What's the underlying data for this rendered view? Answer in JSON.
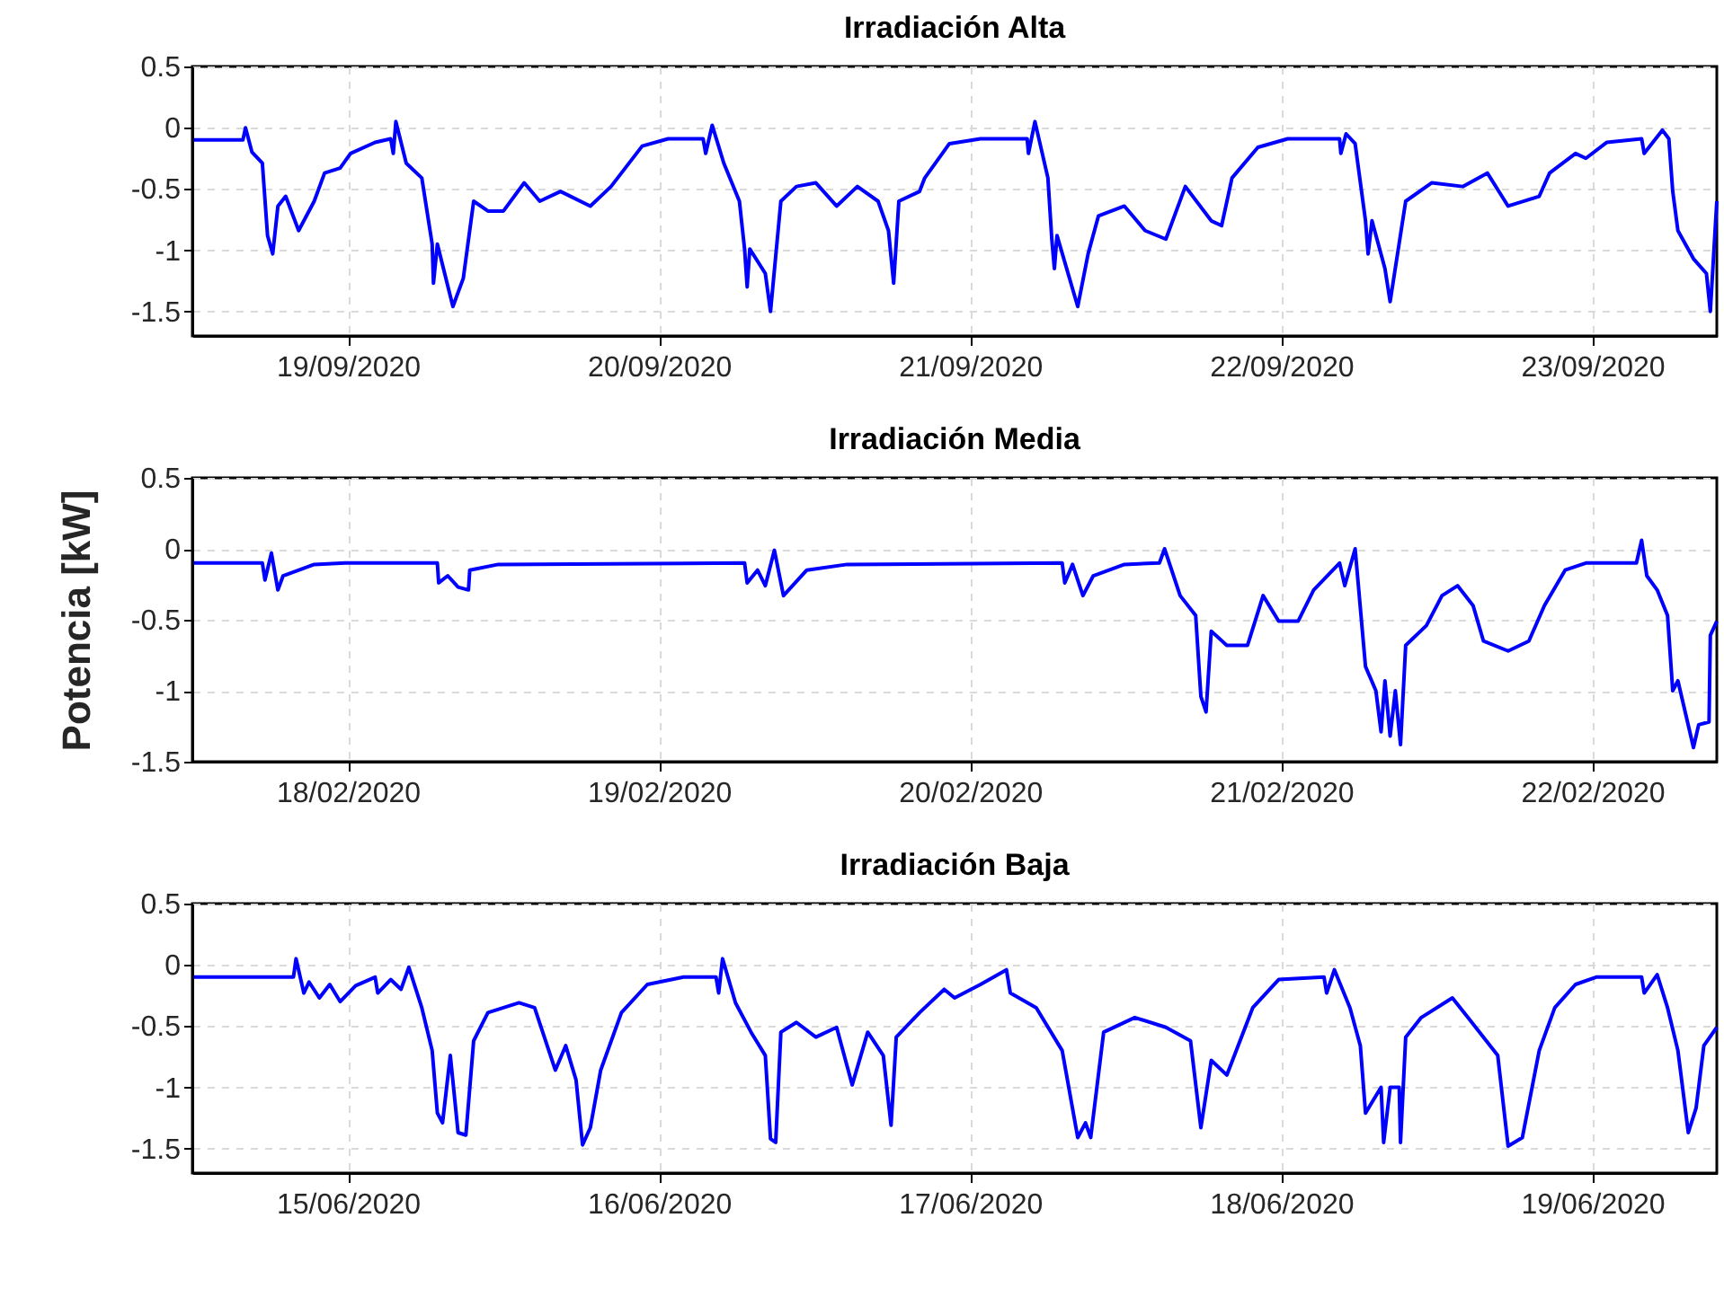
{
  "chart_data": [
    {
      "type": "line",
      "title": "Irradiación Alta",
      "grid": true,
      "x": [
        "2020-09-18T12:06",
        "2020-09-18T15:54",
        "2020-09-18T16:06",
        "2020-09-18T16:36",
        "2020-09-18T17:24",
        "2020-09-18T17:48",
        "2020-09-18T18:12",
        "2020-09-18T18:36",
        "2020-09-18T19:12",
        "2020-09-18T20:12",
        "2020-09-18T21:24",
        "2020-09-18T22:12",
        "2020-09-18T23:24",
        "2020-09-19T00:12",
        "2020-09-19T02:06",
        "2020-09-19T03:18",
        "2020-09-19T03:30",
        "2020-09-19T03:42",
        "2020-09-19T04:30",
        "2020-09-19T05:42",
        "2020-09-19T06:30",
        "2020-09-19T06:36",
        "2020-09-19T06:54",
        "2020-09-19T08:06",
        "2020-09-19T08:54",
        "2020-09-19T09:42",
        "2020-09-19T10:48",
        "2020-09-19T12:00",
        "2020-09-19T13:36",
        "2020-09-19T14:48",
        "2020-09-19T16:24",
        "2020-09-19T18:42",
        "2020-09-19T20:18",
        "2020-09-19T21:06",
        "2020-09-19T22:42",
        "2020-09-20T00:42",
        "2020-09-20T03:24",
        "2020-09-20T03:36",
        "2020-09-20T04:06",
        "2020-09-20T05:00",
        "2020-09-20T06:12",
        "2020-09-20T06:36",
        "2020-09-20T06:48",
        "2020-09-20T07:00",
        "2020-09-20T08:12",
        "2020-09-20T08:36",
        "2020-09-20T09:24",
        "2020-09-20T10:36",
        "2020-09-20T12:06",
        "2020-09-20T13:42",
        "2020-09-20T15:18",
        "2020-09-20T16:54",
        "2020-09-20T17:42",
        "2020-09-20T18:06",
        "2020-09-20T18:30",
        "2020-09-20T20:06",
        "2020-09-20T20:30",
        "2020-09-20T22:24",
        "2020-09-21T00:48",
        "2020-09-21T04:24",
        "2020-09-21T04:30",
        "2020-09-21T05:00",
        "2020-09-21T06:00",
        "2020-09-21T06:18",
        "2020-09-21T06:30",
        "2020-09-21T06:42",
        "2020-09-21T08:18",
        "2020-09-21T09:06",
        "2020-09-21T09:54",
        "2020-09-21T11:54",
        "2020-09-21T13:30",
        "2020-09-21T15:06",
        "2020-09-21T16:36",
        "2020-09-21T18:36",
        "2020-09-21T19:24",
        "2020-09-21T20:12",
        "2020-09-21T22:12",
        "2020-09-22T00:30",
        "2020-09-22T04:30",
        "2020-09-22T04:36",
        "2020-09-22T05:00",
        "2020-09-22T05:42",
        "2020-09-22T06:30",
        "2020-09-22T06:42",
        "2020-09-22T07:00",
        "2020-09-22T08:00",
        "2020-09-22T08:24",
        "2020-09-22T09:36",
        "2020-09-22T11:36",
        "2020-09-22T14:00",
        "2020-09-22T15:54",
        "2020-09-22T17:30",
        "2020-09-22T19:54",
        "2020-09-22T20:42",
        "2020-09-22T22:42",
        "2020-09-22T23:30",
        "2020-09-23T01:06",
        "2020-09-23T03:48",
        "2020-09-23T04:00",
        "2020-09-23T05:24",
        "2020-09-23T05:54",
        "2020-09-23T06:12",
        "2020-09-23T06:36",
        "2020-09-23T07:48",
        "2020-09-23T08:48",
        "2020-09-23T09:06",
        "2020-09-23T09:36"
      ],
      "series": [
        {
          "color": "#0000ff",
          "values": [
            -0.1,
            -0.1,
            0,
            -0.2,
            -0.29,
            -0.88,
            -1.03,
            -0.64,
            -0.56,
            -0.84,
            -0.6,
            -0.37,
            -0.33,
            -0.21,
            -0.12,
            -0.09,
            -0.21,
            0.05,
            -0.29,
            -0.41,
            -0.95,
            -1.27,
            -0.95,
            -1.46,
            -1.23,
            -0.6,
            -0.68,
            -0.68,
            -0.45,
            -0.6,
            -0.52,
            -0.64,
            -0.48,
            -0.37,
            -0.15,
            -0.09,
            -0.09,
            -0.21,
            0.02,
            -0.29,
            -0.6,
            -0.99,
            -1.3,
            -0.99,
            -1.19,
            -1.5,
            -0.6,
            -0.48,
            -0.45,
            -0.64,
            -0.48,
            -0.6,
            -0.84,
            -1.27,
            -0.6,
            -0.52,
            -0.41,
            -0.13,
            -0.09,
            -0.09,
            -0.21,
            0.05,
            -0.41,
            -0.91,
            -1.15,
            -0.88,
            -1.46,
            -1.03,
            -0.72,
            -0.64,
            -0.84,
            -0.91,
            -0.48,
            -0.76,
            -0.8,
            -0.41,
            -0.16,
            -0.09,
            -0.09,
            -0.21,
            -0.05,
            -0.13,
            -0.76,
            -1.03,
            -0.76,
            -1.15,
            -1.42,
            -0.6,
            -0.45,
            -0.48,
            -0.37,
            -0.64,
            -0.56,
            -0.37,
            -0.21,
            -0.25,
            -0.12,
            -0.09,
            -0.21,
            -0.02,
            -0.09,
            -0.52,
            -0.84,
            -1.07,
            -1.19,
            -1.5,
            -0.6
          ]
        }
      ],
      "xlim": [
        "2020-09-18T12:00",
        "2020-09-23T09:36"
      ],
      "xticks": [
        {
          "value": "2020-09-19",
          "label": "19/09/2020"
        },
        {
          "value": "2020-09-20",
          "label": "20/09/2020"
        },
        {
          "value": "2020-09-21",
          "label": "21/09/2020"
        },
        {
          "value": "2020-09-22",
          "label": "22/09/2020"
        },
        {
          "value": "2020-09-23",
          "label": "23/09/2020"
        }
      ],
      "ylim": [
        -1.7,
        0.5
      ],
      "yticks": [
        -1.5,
        -1,
        -0.5,
        0,
        0.5
      ]
    },
    {
      "type": "line",
      "title": "Irradiación Media",
      "ylabel": "Potencia [kW]",
      "grid": true,
      "x": [
        "2020-02-17T12:06",
        "2020-02-17T17:24",
        "2020-02-17T17:36",
        "2020-02-17T18:06",
        "2020-02-17T18:36",
        "2020-02-17T19:00",
        "2020-02-17T21:24",
        "2020-02-17T23:48",
        "2020-02-18T06:54",
        "2020-02-18T07:00",
        "2020-02-18T07:42",
        "2020-02-18T08:30",
        "2020-02-18T09:18",
        "2020-02-18T09:24",
        "2020-02-18T11:36",
        "2020-02-19T06:36",
        "2020-02-19T06:48",
        "2020-02-19T07:36",
        "2020-02-19T08:12",
        "2020-02-19T08:54",
        "2020-02-19T09:36",
        "2020-02-19T11:24",
        "2020-02-19T14:30",
        "2020-02-20T07:06",
        "2020-02-20T07:18",
        "2020-02-20T07:54",
        "2020-02-20T08:42",
        "2020-02-20T09:30",
        "2020-02-20T11:54",
        "2020-02-20T14:36",
        "2020-02-20T15:00",
        "2020-02-20T16:12",
        "2020-02-20T17:24",
        "2020-02-20T17:48",
        "2020-02-20T18:12",
        "2020-02-20T18:36",
        "2020-02-20T19:48",
        "2020-02-20T21:24",
        "2020-02-20T22:36",
        "2020-02-20T23:48",
        "2020-02-21T01:18",
        "2020-02-21T02:30",
        "2020-02-21T04:30",
        "2020-02-21T04:54",
        "2020-02-21T05:42",
        "2020-02-21T06:30",
        "2020-02-21T07:18",
        "2020-02-21T07:42",
        "2020-02-21T08:00",
        "2020-02-21T08:24",
        "2020-02-21T08:48",
        "2020-02-21T09:12",
        "2020-02-21T09:36",
        "2020-02-21T11:12",
        "2020-02-21T12:24",
        "2020-02-21T13:36",
        "2020-02-21T14:48",
        "2020-02-21T15:36",
        "2020-02-21T17:30",
        "2020-02-21T19:06",
        "2020-02-21T20:18",
        "2020-02-21T21:54",
        "2020-02-21T23:30",
        "2020-02-22T03:24",
        "2020-02-22T03:48",
        "2020-02-22T04:12",
        "2020-02-22T05:00",
        "2020-02-22T05:48",
        "2020-02-22T06:12",
        "2020-02-22T06:36",
        "2020-02-22T07:48",
        "2020-02-22T08:12",
        "2020-02-22T09:00",
        "2020-02-22T09:06",
        "2020-02-22T09:36"
      ],
      "series": [
        {
          "color": "#0000ff",
          "values": [
            -0.1,
            -0.1,
            -0.22,
            -0.03,
            -0.29,
            -0.19,
            -0.11,
            -0.1,
            -0.1,
            -0.24,
            -0.19,
            -0.27,
            -0.29,
            -0.15,
            -0.11,
            -0.1,
            -0.24,
            -0.15,
            -0.26,
            -0.01,
            -0.33,
            -0.15,
            -0.11,
            -0.1,
            -0.24,
            -0.11,
            -0.33,
            -0.19,
            -0.11,
            -0.1,
            0,
            -0.33,
            -0.47,
            -1.04,
            -1.15,
            -0.58,
            -0.68,
            -0.68,
            -0.33,
            -0.51,
            -0.51,
            -0.29,
            -0.1,
            -0.26,
            0,
            -0.83,
            -1.0,
            -1.29,
            -0.93,
            -1.32,
            -1.0,
            -1.38,
            -0.68,
            -0.54,
            -0.33,
            -0.26,
            -0.4,
            -0.65,
            -0.72,
            -0.65,
            -0.4,
            -0.15,
            -0.1,
            -0.1,
            0.06,
            -0.19,
            -0.29,
            -0.47,
            -1.0,
            -0.93,
            -1.4,
            -1.24,
            -1.22,
            -0.61,
            -0.51
          ]
        }
      ],
      "xlim": [
        "2020-02-17T12:00",
        "2020-02-22T09:36"
      ],
      "xticks": [
        {
          "value": "2020-02-18",
          "label": "18/02/2020"
        },
        {
          "value": "2020-02-19",
          "label": "19/02/2020"
        },
        {
          "value": "2020-02-20",
          "label": "20/02/2020"
        },
        {
          "value": "2020-02-21",
          "label": "21/02/2020"
        },
        {
          "value": "2020-02-22",
          "label": "22/02/2020"
        }
      ],
      "ylim": [
        -1.5,
        0.5
      ],
      "yticks": [
        -1.5,
        -1,
        -0.5,
        0,
        0.5
      ]
    },
    {
      "type": "line",
      "title": "Irradiación Baja",
      "grid": true,
      "x": [
        "2020-06-14T12:06",
        "2020-06-14T19:48",
        "2020-06-14T20:00",
        "2020-06-14T20:36",
        "2020-06-14T21:00",
        "2020-06-14T21:48",
        "2020-06-14T22:36",
        "2020-06-14T23:24",
        "2020-06-15T00:36",
        "2020-06-15T02:06",
        "2020-06-15T02:18",
        "2020-06-15T03:18",
        "2020-06-15T04:06",
        "2020-06-15T04:42",
        "2020-06-15T05:42",
        "2020-06-15T06:30",
        "2020-06-15T06:54",
        "2020-06-15T07:18",
        "2020-06-15T07:54",
        "2020-06-15T08:30",
        "2020-06-15T09:06",
        "2020-06-15T09:42",
        "2020-06-15T10:48",
        "2020-06-15T13:12",
        "2020-06-15T14:24",
        "2020-06-15T16:00",
        "2020-06-15T16:48",
        "2020-06-15T17:36",
        "2020-06-15T18:06",
        "2020-06-15T18:42",
        "2020-06-15T19:30",
        "2020-06-15T21:06",
        "2020-06-15T23:06",
        "2020-06-16T01:54",
        "2020-06-16T04:24",
        "2020-06-16T04:36",
        "2020-06-16T04:54",
        "2020-06-16T05:54",
        "2020-06-16T07:06",
        "2020-06-16T08:12",
        "2020-06-16T08:36",
        "2020-06-16T09:00",
        "2020-06-16T09:24",
        "2020-06-16T10:36",
        "2020-06-16T12:06",
        "2020-06-16T13:42",
        "2020-06-16T14:54",
        "2020-06-16T16:06",
        "2020-06-16T17:18",
        "2020-06-16T17:54",
        "2020-06-16T18:18",
        "2020-06-16T20:06",
        "2020-06-16T22:00",
        "2020-06-16T22:48",
        "2020-06-17T00:48",
        "2020-06-17T02:48",
        "2020-06-17T03:06",
        "2020-06-17T05:06",
        "2020-06-17T07:06",
        "2020-06-17T08:18",
        "2020-06-17T08:54",
        "2020-06-17T09:18",
        "2020-06-17T10:18",
        "2020-06-17T12:42",
        "2020-06-17T15:06",
        "2020-06-17T17:00",
        "2020-06-17T17:48",
        "2020-06-17T18:36",
        "2020-06-17T19:48",
        "2020-06-17T21:48",
        "2020-06-17T23:48",
        "2020-06-18T03:18",
        "2020-06-18T03:30",
        "2020-06-18T04:06",
        "2020-06-18T05:18",
        "2020-06-18T06:06",
        "2020-06-18T06:30",
        "2020-06-18T07:42",
        "2020-06-18T07:54",
        "2020-06-18T08:24",
        "2020-06-18T09:06",
        "2020-06-18T09:12",
        "2020-06-18T09:36",
        "2020-06-18T10:48",
        "2020-06-18T13:12",
        "2020-06-18T14:24",
        "2020-06-18T16:42",
        "2020-06-18T17:30",
        "2020-06-18T18:36",
        "2020-06-18T19:54",
        "2020-06-18T21:06",
        "2020-06-18T22:42",
        "2020-06-19T00:18",
        "2020-06-19T03:48",
        "2020-06-19T04:00",
        "2020-06-19T05:00",
        "2020-06-19T05:48",
        "2020-06-19T06:36",
        "2020-06-19T07:24",
        "2020-06-19T08:00",
        "2020-06-19T08:36",
        "2020-06-19T09:36"
      ],
      "series": [
        {
          "color": "#0000ff",
          "values": [
            -0.1,
            -0.1,
            0.05,
            -0.23,
            -0.14,
            -0.27,
            -0.16,
            -0.3,
            -0.17,
            -0.1,
            -0.23,
            -0.12,
            -0.2,
            -0.02,
            -0.35,
            -0.7,
            -1.21,
            -1.29,
            -0.74,
            -1.37,
            -1.39,
            -0.62,
            -0.39,
            -0.31,
            -0.35,
            -0.86,
            -0.66,
            -0.94,
            -1.47,
            -1.33,
            -0.86,
            -0.39,
            -0.16,
            -0.1,
            -0.1,
            -0.23,
            0.05,
            -0.31,
            -0.55,
            -0.74,
            -1.42,
            -1.45,
            -0.55,
            -0.47,
            -0.59,
            -0.51,
            -0.98,
            -0.55,
            -0.74,
            -1.31,
            -0.59,
            -0.39,
            -0.2,
            -0.27,
            -0.16,
            -0.04,
            -0.23,
            -0.35,
            -0.7,
            -1.41,
            -1.29,
            -1.41,
            -0.55,
            -0.43,
            -0.51,
            -0.62,
            -1.33,
            -0.78,
            -0.9,
            -0.35,
            -0.12,
            -0.1,
            -0.23,
            -0.04,
            -0.35,
            -0.66,
            -1.21,
            -1.0,
            -1.45,
            -1.0,
            -1.0,
            -1.45,
            -0.59,
            -0.43,
            -0.27,
            -0.43,
            -0.74,
            -1.48,
            -1.41,
            -0.7,
            -0.35,
            -0.16,
            -0.1,
            -0.1,
            -0.23,
            -0.08,
            -0.35,
            -0.7,
            -1.37,
            -1.17,
            -0.66,
            -0.51
          ]
        }
      ],
      "xlim": [
        "2020-06-14T12:00",
        "2020-06-19T09:36"
      ],
      "xticks": [
        {
          "value": "2020-06-15",
          "label": "15/06/2020"
        },
        {
          "value": "2020-06-16",
          "label": "16/06/2020"
        },
        {
          "value": "2020-06-17",
          "label": "17/06/2020"
        },
        {
          "value": "2020-06-18",
          "label": "18/06/2020"
        },
        {
          "value": "2020-06-19",
          "label": "19/06/2020"
        }
      ],
      "ylim": [
        -1.7,
        0.5
      ],
      "yticks": [
        -1.5,
        -1,
        -0.5,
        0,
        0.5
      ]
    }
  ]
}
